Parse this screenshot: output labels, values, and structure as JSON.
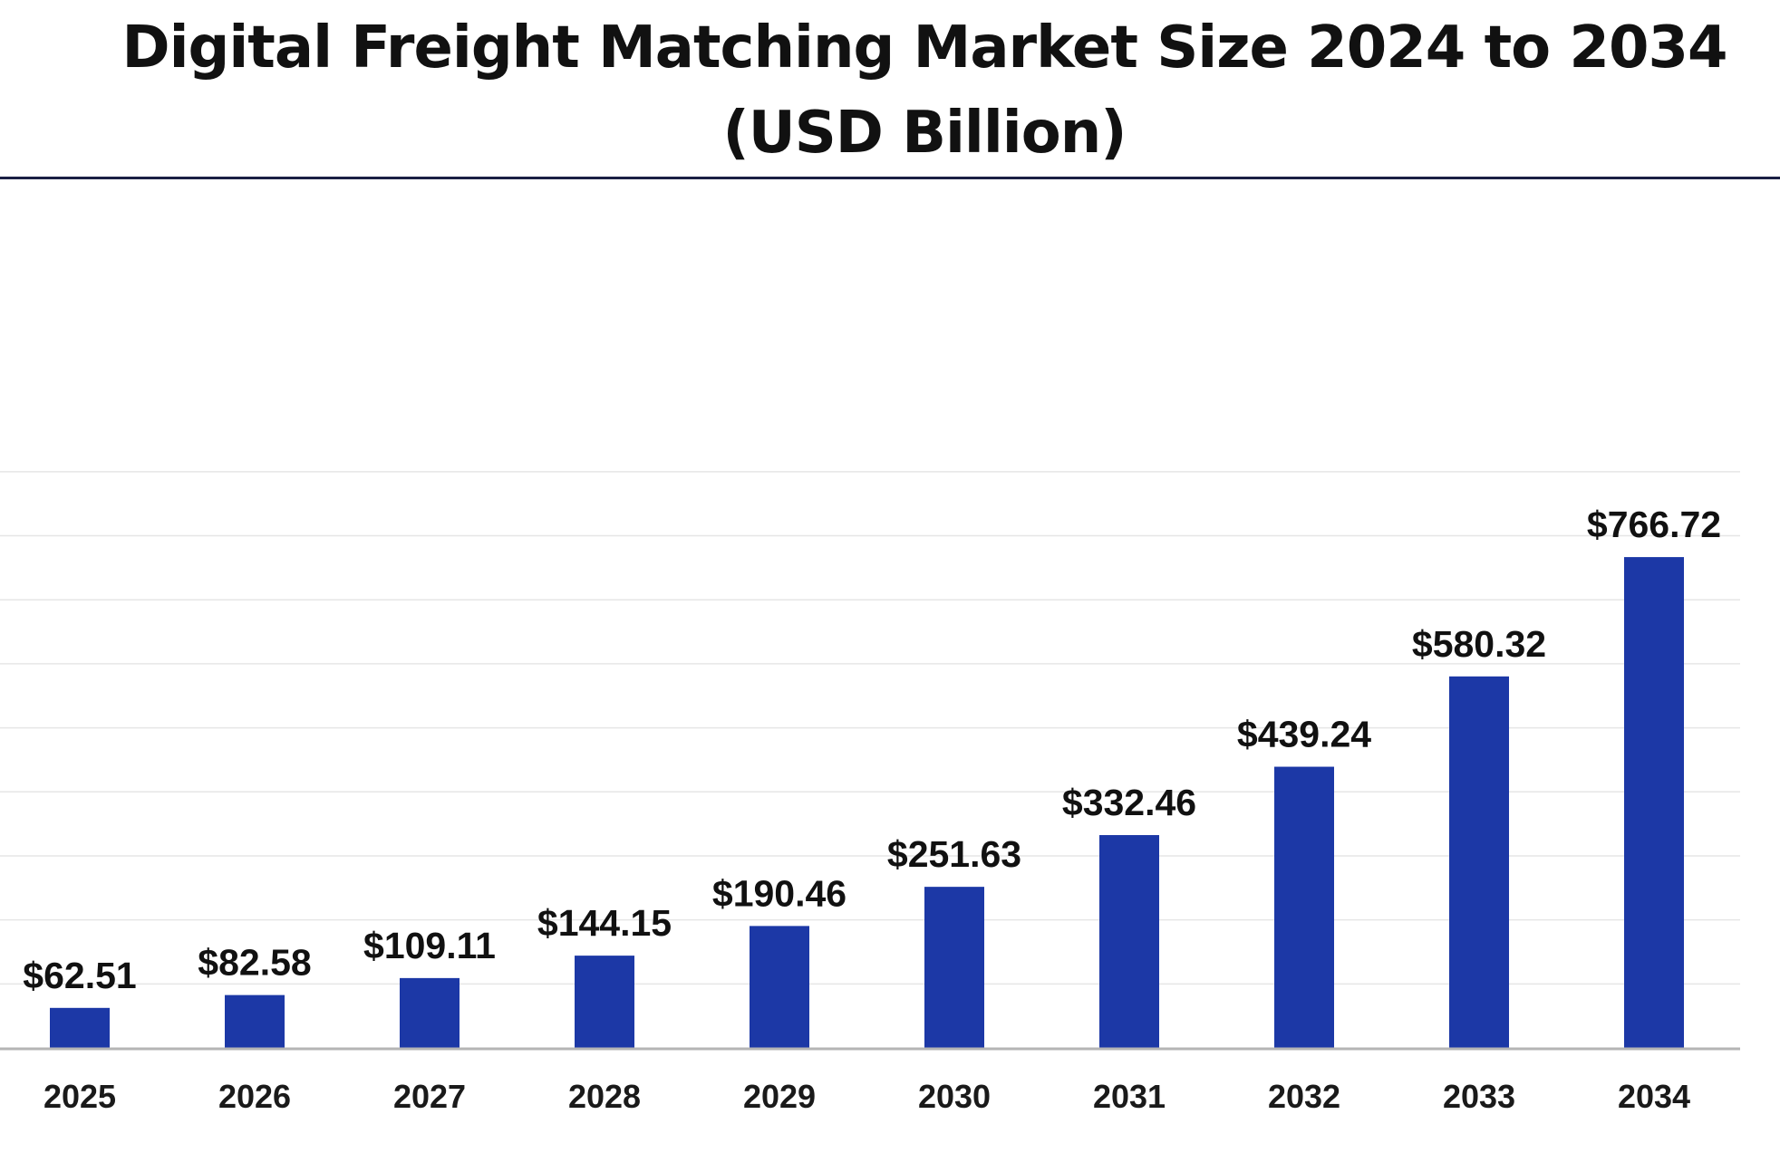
{
  "header": {
    "title_line1": "Digital Freight Matching Market Size 2024 to 2034",
    "title_line2": "(USD Billion)"
  },
  "chart_data": {
    "type": "bar",
    "title": "Digital Freight Matching Market Size 2024 to 2034 (USD Billion)",
    "categories": [
      "2025",
      "2026",
      "2027",
      "2028",
      "2029",
      "2030",
      "2031",
      "2032",
      "2033",
      "2034"
    ],
    "values": [
      62.51,
      82.58,
      109.11,
      144.15,
      190.46,
      251.63,
      332.46,
      439.24,
      580.32,
      766.72
    ],
    "value_labels": [
      "$62.51",
      "$82.58",
      "$109.11",
      "$144.15",
      "$190.46",
      "$251.63",
      "$332.46",
      "$439.24",
      "$580.32",
      "$766.72"
    ],
    "xlabel": "",
    "ylabel": "",
    "ylim": [
      0,
      900
    ],
    "grid": true,
    "legend": "none",
    "bar_color": "#1c38a6",
    "gridline_color": "#e6e6e6",
    "axis_color": "#b5b5b5"
  }
}
